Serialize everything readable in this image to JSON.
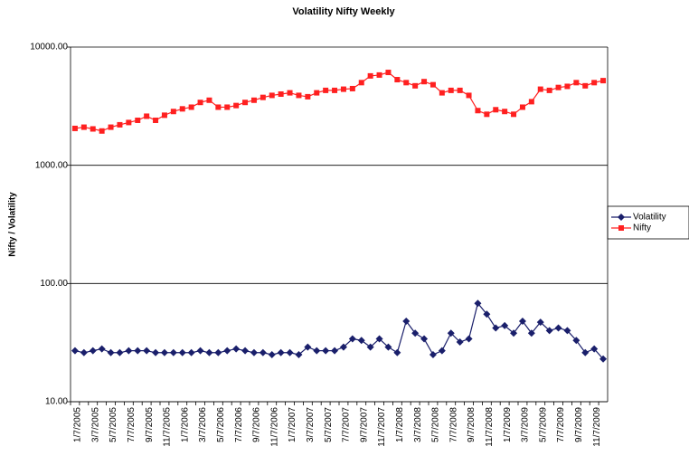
{
  "chart_data": {
    "type": "line",
    "title": "Volatility Nifty Weekly",
    "y_label": "Nifty / Volatility",
    "yscale": "log",
    "ylim": [
      10,
      10000
    ],
    "yticks": [
      {
        "value": 10,
        "label": "10.00"
      },
      {
        "value": 100,
        "label": "100.00"
      },
      {
        "value": 1000,
        "label": "1000.00"
      },
      {
        "value": 10000,
        "label": "10000.00"
      }
    ],
    "grid": true,
    "legend": "right",
    "categories": [
      "1/7/2005",
      null,
      "3/7/2005",
      null,
      "5/7/2005",
      null,
      "7/7/2005",
      null,
      "9/7/2005",
      null,
      "11/7/2005",
      null,
      "1/7/2006",
      null,
      "3/7/2006",
      null,
      "5/7/2006",
      null,
      "7/7/2006",
      null,
      "9/7/2006",
      null,
      "11/7/2006",
      null,
      "1/7/2007",
      null,
      "3/7/2007",
      null,
      "5/7/2007",
      null,
      "7/7/2007",
      null,
      "9/7/2007",
      null,
      "11/7/2007",
      null,
      "1/7/2008",
      null,
      "3/7/2008",
      null,
      "5/7/2008",
      null,
      "7/7/2008",
      null,
      "9/7/2008",
      null,
      "11/7/2008",
      null,
      "1/7/2009",
      null,
      "3/7/2009",
      null,
      "5/7/2009",
      null,
      "7/7/2009",
      null,
      "9/7/2009",
      null,
      "11/7/2009",
      null
    ],
    "series": [
      {
        "name": "Volatility",
        "color": "#1a1f6b",
        "marker": "diamond",
        "values": [
          27,
          26,
          27,
          28,
          26,
          26,
          27,
          27,
          27,
          26,
          26,
          26,
          26,
          26,
          27,
          26,
          26,
          27,
          28,
          27,
          26,
          26,
          25,
          26,
          26,
          25,
          29,
          27,
          27,
          27,
          29,
          34,
          33,
          29,
          34,
          29,
          26,
          48,
          38,
          34,
          25,
          27,
          38,
          32,
          34,
          68,
          55,
          42,
          44,
          38,
          48,
          38,
          47,
          40,
          42,
          40,
          33,
          26,
          28,
          23
        ]
      },
      {
        "name": "Nifty",
        "color": "#ff2020",
        "marker": "square",
        "values": [
          2050,
          2100,
          2030,
          1950,
          2100,
          2200,
          2300,
          2400,
          2600,
          2400,
          2650,
          2850,
          3000,
          3100,
          3400,
          3550,
          3100,
          3100,
          3200,
          3400,
          3550,
          3750,
          3900,
          4000,
          4100,
          3900,
          3800,
          4100,
          4300,
          4300,
          4400,
          4450,
          5000,
          5700,
          5800,
          6100,
          5300,
          5000,
          4700,
          5100,
          4800,
          4100,
          4300,
          4300,
          3900,
          2900,
          2700,
          2950,
          2850,
          2700,
          3100,
          3450,
          4400,
          4300,
          4550,
          4650,
          5000,
          4700,
          5000,
          5200
        ]
      }
    ]
  }
}
